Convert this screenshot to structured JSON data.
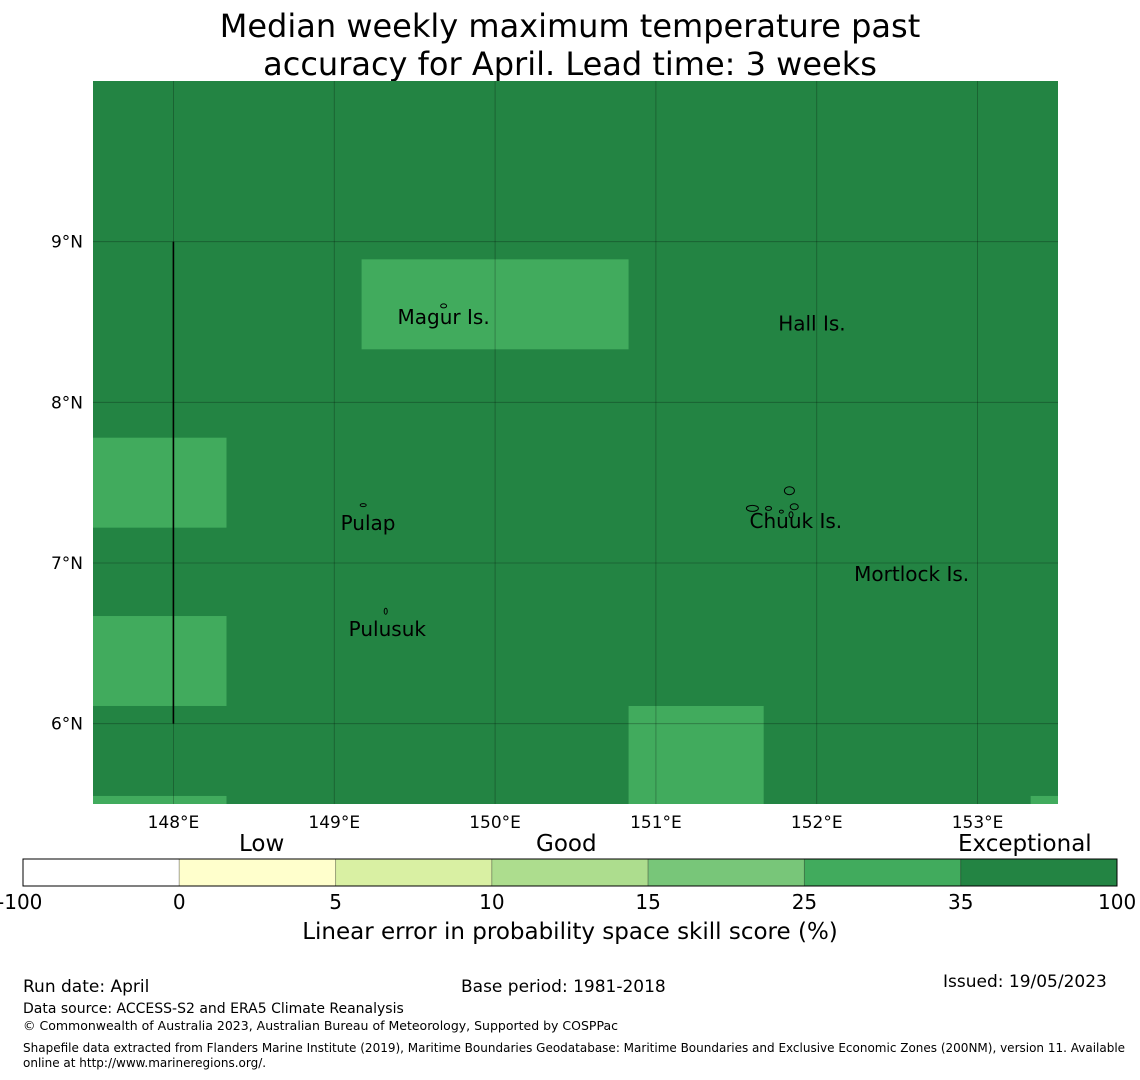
{
  "title": {
    "line1": "Median weekly maximum temperature past",
    "line2": "accuracy for April. Lead time: 3 weeks"
  },
  "map": {
    "lon_range": [
      147.5,
      153.5
    ],
    "lat_range": [
      5.5,
      10.0
    ],
    "lon_ticks": [
      148,
      149,
      150,
      151,
      152,
      153
    ],
    "lon_tick_labels": [
      "148°E",
      "149°E",
      "150°E",
      "151°E",
      "152°E",
      "153°E"
    ],
    "lat_ticks": [
      6,
      7,
      8,
      9
    ],
    "lat_tick_labels": [
      "6°N",
      "7°N",
      "8°N",
      "9°N"
    ],
    "grid": true,
    "background_category": "Exceptional",
    "colors": {
      "exceptional": "#238443",
      "good_high": "#41ab5d"
    },
    "cells_25_35": [
      {
        "lon": [
          149.17,
          150.83
        ],
        "lat": [
          8.33,
          8.89
        ]
      },
      {
        "lon": [
          147.5,
          148.33
        ],
        "lat": [
          7.22,
          7.78
        ]
      },
      {
        "lon": [
          147.5,
          148.33
        ],
        "lat": [
          6.11,
          6.67
        ]
      },
      {
        "lon": [
          150.83,
          151.67
        ],
        "lat": [
          5.5,
          6.11
        ]
      },
      {
        "lon": [
          147.5,
          148.33
        ],
        "lat": [
          5.5,
          5.55
        ]
      },
      {
        "lon": [
          153.33,
          153.5
        ],
        "lat": [
          5.5,
          5.55
        ]
      }
    ],
    "boundary_line": {
      "lon": 148.0,
      "lat": [
        6.0,
        9.0
      ]
    },
    "place_labels": [
      {
        "name": "Magur Is.",
        "lon": 149.68,
        "lat": 8.53
      },
      {
        "name": "Hall Is.",
        "lon": 151.97,
        "lat": 8.49
      },
      {
        "name": "Pulap",
        "lon": 149.21,
        "lat": 7.25
      },
      {
        "name": "Chuuk Is.",
        "lon": 151.87,
        "lat": 7.26
      },
      {
        "name": "Mortlock Is.",
        "lon": 152.59,
        "lat": 6.93
      },
      {
        "name": "Pulusuk",
        "lon": 149.33,
        "lat": 6.59
      }
    ]
  },
  "legend": {
    "categories": [
      "Low",
      "Good",
      "Exceptional"
    ],
    "tick_labels": [
      "-100",
      "0",
      "5",
      "10",
      "15",
      "25",
      "35",
      "100"
    ],
    "colors": [
      "#ffffff",
      "#ffffcc",
      "#d9f0a3",
      "#addd8e",
      "#78c679",
      "#41ab5d",
      "#238443"
    ],
    "label": "Linear error in probability space skill score (%)"
  },
  "footer": {
    "run_date": "Run date: April",
    "base_period": "Base period: 1981-2018",
    "issued": "Issued: 19/05/2023",
    "data_source": "Data source: ACCESS-S2 and ERA5 Climate Reanalysis",
    "copyright": "© Commonwealth of Australia 2023, Australian Bureau of Meteorology, Supported by COSPPac",
    "shapefile": "Shapefile data extracted from Flanders Marine Institute (2019), Maritime Boundaries Geodatabase: Maritime Boundaries and Exclusive Economic Zones (200NM), version 11. Available online at http://www.marineregions.org/."
  }
}
